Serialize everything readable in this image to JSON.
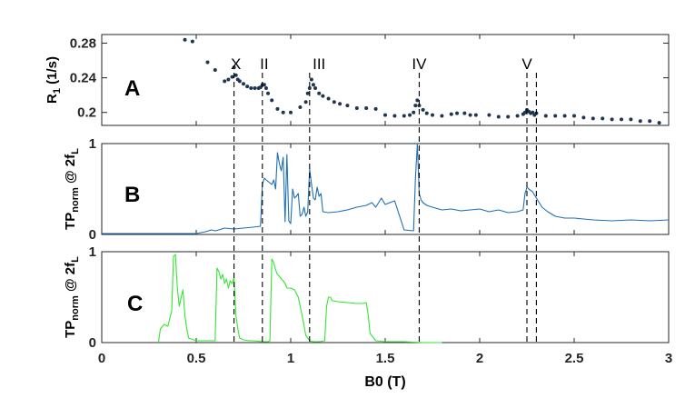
{
  "chart_data": [
    {
      "id": "A",
      "type": "scatter",
      "panel_label": "A",
      "ylabel_main": "R",
      "ylabel_sub": "1",
      "ylabel_rest": " (1/s)",
      "xlim": [
        0,
        3
      ],
      "ylim": [
        0.185,
        0.29
      ],
      "yticks": [
        "0.28",
        "0.24",
        "0.2"
      ],
      "ytick_values": [
        0.28,
        0.24,
        0.2
      ],
      "color": "#1f3550",
      "points": [
        [
          0.44,
          0.284
        ],
        [
          0.48,
          0.282
        ],
        [
          0.56,
          0.258
        ],
        [
          0.6,
          0.249
        ],
        [
          0.65,
          0.236
        ],
        [
          0.67,
          0.238
        ],
        [
          0.69,
          0.241
        ],
        [
          0.7,
          0.252
        ],
        [
          0.71,
          0.243
        ],
        [
          0.72,
          0.238
        ],
        [
          0.73,
          0.236
        ],
        [
          0.75,
          0.233
        ],
        [
          0.77,
          0.23
        ],
        [
          0.79,
          0.228
        ],
        [
          0.81,
          0.228
        ],
        [
          0.83,
          0.228
        ],
        [
          0.84,
          0.229
        ],
        [
          0.85,
          0.232
        ],
        [
          0.86,
          0.232
        ],
        [
          0.87,
          0.228
        ],
        [
          0.88,
          0.222
        ],
        [
          0.9,
          0.214
        ],
        [
          0.93,
          0.204
        ],
        [
          0.96,
          0.2
        ],
        [
          1.0,
          0.2
        ],
        [
          1.05,
          0.206
        ],
        [
          1.08,
          0.212
        ],
        [
          1.09,
          0.222
        ],
        [
          1.1,
          0.228
        ],
        [
          1.11,
          0.238
        ],
        [
          1.12,
          0.232
        ],
        [
          1.13,
          0.228
        ],
        [
          1.15,
          0.222
        ],
        [
          1.17,
          0.219
        ],
        [
          1.2,
          0.216
        ],
        [
          1.23,
          0.212
        ],
        [
          1.26,
          0.21
        ],
        [
          1.3,
          0.208
        ],
        [
          1.35,
          0.205
        ],
        [
          1.4,
          0.205
        ],
        [
          1.45,
          0.204
        ],
        [
          1.5,
          0.197
        ],
        [
          1.55,
          0.196
        ],
        [
          1.6,
          0.196
        ],
        [
          1.63,
          0.197
        ],
        [
          1.65,
          0.2
        ],
        [
          1.66,
          0.208
        ],
        [
          1.67,
          0.214
        ],
        [
          1.68,
          0.208
        ],
        [
          1.7,
          0.203
        ],
        [
          1.72,
          0.199
        ],
        [
          1.75,
          0.197
        ],
        [
          1.8,
          0.196
        ],
        [
          1.85,
          0.198
        ],
        [
          1.88,
          0.199
        ],
        [
          1.92,
          0.199
        ],
        [
          1.95,
          0.197
        ],
        [
          1.98,
          0.197
        ],
        [
          2.05,
          0.197
        ],
        [
          2.1,
          0.195
        ],
        [
          2.15,
          0.195
        ],
        [
          2.2,
          0.196
        ],
        [
          2.23,
          0.198
        ],
        [
          2.24,
          0.2
        ],
        [
          2.25,
          0.203
        ],
        [
          2.26,
          0.201
        ],
        [
          2.27,
          0.199
        ],
        [
          2.28,
          0.2
        ],
        [
          2.29,
          0.197
        ],
        [
          2.3,
          0.199
        ],
        [
          2.35,
          0.196
        ],
        [
          2.4,
          0.196
        ],
        [
          2.45,
          0.196
        ],
        [
          2.5,
          0.196
        ],
        [
          2.55,
          0.194
        ],
        [
          2.6,
          0.193
        ],
        [
          2.65,
          0.193
        ],
        [
          2.7,
          0.192
        ],
        [
          2.75,
          0.192
        ],
        [
          2.8,
          0.192
        ],
        [
          2.85,
          0.19
        ],
        [
          2.9,
          0.19
        ],
        [
          2.95,
          0.188
        ]
      ],
      "annotations": [
        {
          "text": "X",
          "x": 0.71
        },
        {
          "text": "II",
          "x": 0.86
        },
        {
          "text": "III",
          "x": 1.15
        },
        {
          "text": "IV",
          "x": 1.68
        },
        {
          "text": "V",
          "x": 2.25
        }
      ]
    },
    {
      "id": "B",
      "type": "line",
      "panel_label": "B",
      "ylabel_main": "TP",
      "ylabel_sub": "norm",
      "ylabel_rest": " @ 2f",
      "ylabel_sub2": "L",
      "xlim": [
        0,
        3
      ],
      "ylim": [
        0,
        1
      ],
      "yticks": [
        "1",
        "0"
      ],
      "ytick_values": [
        1,
        0
      ],
      "color": "#1f6fb5",
      "x": [
        0,
        0.5,
        0.55,
        0.58,
        0.6,
        0.62,
        0.65,
        0.7,
        0.75,
        0.8,
        0.84,
        0.85,
        0.86,
        0.87,
        0.9,
        0.91,
        0.92,
        0.93,
        0.94,
        0.95,
        0.96,
        0.97,
        0.98,
        0.99,
        1.0,
        1.01,
        1.02,
        1.03,
        1.04,
        1.05,
        1.06,
        1.07,
        1.08,
        1.09,
        1.1,
        1.11,
        1.12,
        1.13,
        1.14,
        1.15,
        1.16,
        1.17,
        1.2,
        1.25,
        1.3,
        1.35,
        1.4,
        1.43,
        1.45,
        1.48,
        1.5,
        1.55,
        1.6,
        1.65,
        1.66,
        1.67,
        1.68,
        1.69,
        1.7,
        1.72,
        1.75,
        1.8,
        1.85,
        1.9,
        1.95,
        2.0,
        2.05,
        2.1,
        2.15,
        2.2,
        2.23,
        2.24,
        2.25,
        2.26,
        2.28,
        2.3,
        2.33,
        2.36,
        2.4,
        2.45,
        2.5,
        2.55,
        2.6,
        2.7,
        2.8,
        2.9,
        3.0
      ],
      "y": [
        0.01,
        0.01,
        0.03,
        0.05,
        0.04,
        0.05,
        0.07,
        0.06,
        0.07,
        0.08,
        0.09,
        0.55,
        0.62,
        0.6,
        0.55,
        0.6,
        0.5,
        0.9,
        0.78,
        0.7,
        0.85,
        0.14,
        0.88,
        0.15,
        0.12,
        0.5,
        0.4,
        0.42,
        0.45,
        0.2,
        0.22,
        0.3,
        0.2,
        0.25,
        0.72,
        0.55,
        0.4,
        0.38,
        0.52,
        0.42,
        0.45,
        0.25,
        0.24,
        0.25,
        0.27,
        0.3,
        0.32,
        0.35,
        0.3,
        0.4,
        0.33,
        0.37,
        0.05,
        0.04,
        0.62,
        1.0,
        0.45,
        0.38,
        0.35,
        0.32,
        0.3,
        0.27,
        0.28,
        0.26,
        0.27,
        0.28,
        0.25,
        0.27,
        0.24,
        0.25,
        0.27,
        0.45,
        0.52,
        0.5,
        0.47,
        0.4,
        0.3,
        0.25,
        0.2,
        0.18,
        0.18,
        0.17,
        0.16,
        0.15,
        0.16,
        0.15,
        0.16
      ]
    },
    {
      "id": "C",
      "type": "line",
      "panel_label": "C",
      "ylabel_main": "TP",
      "ylabel_sub": "norm",
      "ylabel_rest": " @ 2f",
      "ylabel_sub2": "L",
      "xlim": [
        0,
        3
      ],
      "ylim": [
        0,
        1
      ],
      "yticks": [
        "1",
        "0"
      ],
      "ytick_values": [
        1,
        0
      ],
      "color": "#33e633",
      "x": [
        0.3,
        0.31,
        0.33,
        0.35,
        0.37,
        0.38,
        0.39,
        0.4,
        0.41,
        0.42,
        0.43,
        0.44,
        0.45,
        0.46,
        0.5,
        0.55,
        0.6,
        0.61,
        0.62,
        0.63,
        0.64,
        0.65,
        0.66,
        0.67,
        0.68,
        0.69,
        0.7,
        0.71,
        0.72,
        0.73,
        0.75,
        0.78,
        0.8,
        0.85,
        0.88,
        0.89,
        0.9,
        0.91,
        0.92,
        0.93,
        0.94,
        0.95,
        0.96,
        0.97,
        0.98,
        1.0,
        1.02,
        1.04,
        1.06,
        1.08,
        1.1,
        1.12,
        1.15,
        1.18,
        1.19,
        1.2,
        1.21,
        1.22,
        1.25,
        1.3,
        1.35,
        1.38,
        1.4,
        1.41,
        1.42,
        1.45,
        1.5,
        1.6,
        1.7,
        1.8
      ],
      "y": [
        0.0,
        0.15,
        0.2,
        0.18,
        0.35,
        0.95,
        0.97,
        0.6,
        0.4,
        0.5,
        0.58,
        0.3,
        0.15,
        0.05,
        0.02,
        0.02,
        0.02,
        0.82,
        0.78,
        0.7,
        0.75,
        0.65,
        0.7,
        0.6,
        0.68,
        0.65,
        0.72,
        0.3,
        0.15,
        0.05,
        0.03,
        0.02,
        0.02,
        0.01,
        0.01,
        0.02,
        0.92,
        0.88,
        0.8,
        0.75,
        0.73,
        0.7,
        0.68,
        0.65,
        0.6,
        0.6,
        0.58,
        0.5,
        0.3,
        0.08,
        0.02,
        0.01,
        0.01,
        0.02,
        0.4,
        0.5,
        0.5,
        0.46,
        0.45,
        0.44,
        0.43,
        0.43,
        0.44,
        0.3,
        0.1,
        0.02,
        0.01,
        0.01,
        0.0,
        0.0
      ]
    }
  ],
  "dashed_lines_x": [
    0.7,
    0.85,
    1.1,
    1.68,
    2.25,
    2.3
  ],
  "x_axis": {
    "label": "B0 (T)",
    "ticks": [
      "0",
      "0.5",
      "1",
      "1.5",
      "2",
      "2.5",
      "3"
    ],
    "tick_values": [
      0,
      0.5,
      1,
      1.5,
      2,
      2.5,
      3
    ]
  }
}
